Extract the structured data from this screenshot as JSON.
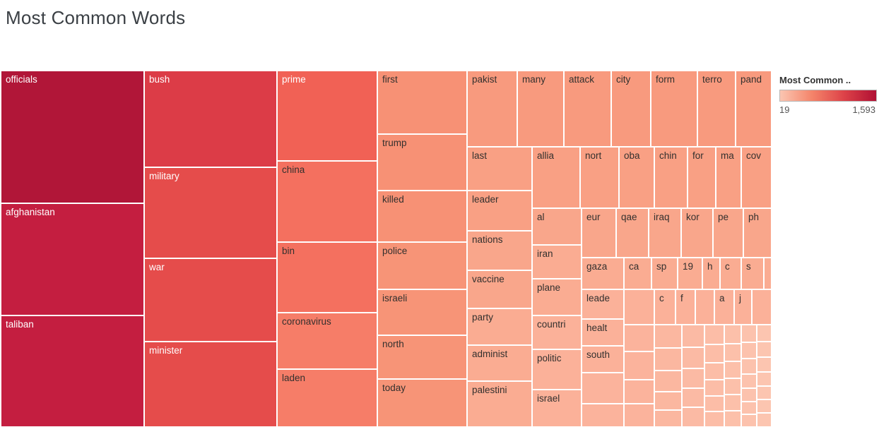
{
  "header": {
    "title": "Most Common Words"
  },
  "legend": {
    "title": "Most Common ..",
    "min_label": "19",
    "max_label": "1,593",
    "gradient": [
      "#fbc6b2",
      "#f4846a",
      "#dd4248",
      "#b01034"
    ]
  },
  "chart_data": {
    "type": "treemap",
    "title": "Most Common Words",
    "value_domain": [
      19,
      1593
    ],
    "legend_position": "right",
    "palette": {
      "t1": "#b11638",
      "t2": "#c41e40",
      "t3": "#dc3c47",
      "t4": "#e54c4b",
      "t5": "#f16155",
      "t6": "#f4705f",
      "t7": "#f67d68",
      "t8": "#f79175",
      "t9": "#f79477",
      "t10": "#f89a7e",
      "t11": "#f9a084",
      "t12": "#f9a68b",
      "t13": "#faac92",
      "t14": "#fbb199",
      "m1": "#fbb39c",
      "m2": "#fbb7a0",
      "m3": "#fbbaa4",
      "m4": "#fcbda7",
      "m5": "#fcc0aa",
      "m6": "#fcc2ad",
      "m7": "#fcc5b0"
    },
    "light_text_tiers": [
      "t1",
      "t2",
      "t3",
      "t4",
      "t5"
    ],
    "text_colors": {
      "light": "#ffffff",
      "dark": "#33302e"
    },
    "cells": [
      [
        "officials",
        0,
        0,
        203,
        188,
        "t1"
      ],
      [
        "afghanistan",
        0,
        188,
        203,
        159,
        "t2"
      ],
      [
        "taliban",
        0,
        347,
        203,
        158,
        "t2"
      ],
      [
        "bush",
        203,
        0,
        188,
        137,
        "t3"
      ],
      [
        "military",
        203,
        137,
        188,
        129,
        "t4"
      ],
      [
        "war",
        203,
        266,
        188,
        118,
        "t4"
      ],
      [
        "minister",
        203,
        384,
        188,
        121,
        "t4"
      ],
      [
        "prime",
        391,
        0,
        142,
        128,
        "t5"
      ],
      [
        "china",
        391,
        128,
        142,
        115,
        "t6"
      ],
      [
        "bin",
        391,
        243,
        142,
        100,
        "t6"
      ],
      [
        "coronavirus",
        391,
        343,
        142,
        80,
        "t7"
      ],
      [
        "laden",
        391,
        423,
        142,
        82,
        "t7"
      ],
      [
        "first",
        533,
        0,
        127,
        90,
        "t8"
      ],
      [
        "trump",
        533,
        90,
        127,
        80,
        "t8"
      ],
      [
        "killed",
        533,
        170,
        127,
        73,
        "t8"
      ],
      [
        "police",
        533,
        243,
        127,
        67,
        "t9"
      ],
      [
        "israeli",
        533,
        310,
        127,
        65,
        "t9"
      ],
      [
        "north",
        533,
        375,
        127,
        62,
        "t9"
      ],
      [
        "today",
        533,
        437,
        127,
        68,
        "t9"
      ],
      [
        "pakist",
        660,
        0,
        71,
        108,
        "t10"
      ],
      [
        "many",
        731,
        0,
        66,
        108,
        "t10"
      ],
      [
        "attack",
        797,
        0,
        67,
        108,
        "t10"
      ],
      [
        "city",
        864,
        0,
        56,
        108,
        "t10"
      ],
      [
        "form",
        920,
        0,
        66,
        108,
        "t10"
      ],
      [
        "terro",
        986,
        0,
        54,
        108,
        "t10"
      ],
      [
        "pand",
        1040,
        0,
        51,
        108,
        "t10"
      ],
      [
        "last",
        660,
        108,
        92,
        62,
        "t11"
      ],
      [
        "leader",
        660,
        170,
        92,
        57,
        "t11"
      ],
      [
        "nations",
        660,
        227,
        92,
        56,
        "t12"
      ],
      [
        "vaccine",
        660,
        283,
        92,
        54,
        "t12"
      ],
      [
        "party",
        660,
        337,
        92,
        52,
        "t13"
      ],
      [
        "administ",
        660,
        389,
        92,
        51,
        "t13"
      ],
      [
        "palestini",
        660,
        440,
        92,
        65,
        "t13"
      ],
      [
        "allia",
        752,
        108,
        68,
        87,
        "t11"
      ],
      [
        "nort",
        820,
        108,
        55,
        87,
        "t11"
      ],
      [
        "oba",
        875,
        108,
        50,
        87,
        "t11"
      ],
      [
        "chin",
        925,
        108,
        47,
        87,
        "t11"
      ],
      [
        "for",
        972,
        108,
        40,
        87,
        "t11"
      ],
      [
        "ma",
        1012,
        108,
        36,
        87,
        "t11"
      ],
      [
        "cov",
        1048,
        108,
        43,
        87,
        "t11"
      ],
      [
        "al",
        752,
        195,
        70,
        52,
        "t12"
      ],
      [
        "iran",
        752,
        247,
        70,
        48,
        "t13"
      ],
      [
        "plane",
        752,
        295,
        70,
        52,
        "t13"
      ],
      [
        "countri",
        752,
        347,
        70,
        48,
        "t14"
      ],
      [
        "politic",
        752,
        395,
        70,
        57,
        "t14"
      ],
      [
        "israel",
        752,
        452,
        70,
        53,
        "t14"
      ],
      [
        "eur",
        822,
        195,
        49,
        70,
        "t12"
      ],
      [
        "qae",
        871,
        195,
        46,
        70,
        "t12"
      ],
      [
        "iraq",
        917,
        195,
        46,
        70,
        "t12"
      ],
      [
        "kor",
        963,
        195,
        45,
        70,
        "t12"
      ],
      [
        "pe",
        1008,
        195,
        43,
        70,
        "t12"
      ],
      [
        "ph",
        1051,
        195,
        40,
        70,
        "t12"
      ],
      [
        "gaza",
        822,
        265,
        60,
        45,
        "t13"
      ],
      [
        "ca",
        882,
        265,
        39,
        45,
        "t13"
      ],
      [
        "sp",
        921,
        265,
        37,
        45,
        "t13"
      ],
      [
        "19",
        958,
        265,
        35,
        45,
        "t13"
      ],
      [
        "h",
        993,
        265,
        25,
        45,
        "t13"
      ],
      [
        "c",
        1018,
        265,
        30,
        45,
        "t13"
      ],
      [
        "s",
        1048,
        265,
        32,
        45,
        "t13"
      ],
      [
        "",
        1080,
        265,
        11,
        45,
        "t13"
      ],
      [
        "leade",
        822,
        310,
        60,
        42,
        "t14"
      ],
      [
        "healt",
        822,
        352,
        60,
        38,
        "t14"
      ],
      [
        "south",
        822,
        390,
        60,
        38,
        "t14"
      ],
      [
        "",
        822,
        428,
        60,
        44,
        "m1"
      ],
      [
        "",
        822,
        472,
        60,
        33,
        "m1"
      ],
      [
        "",
        882,
        310,
        43,
        50,
        "t14"
      ],
      [
        "c",
        925,
        310,
        30,
        50,
        "t14"
      ],
      [
        "f",
        955,
        310,
        28,
        50,
        "t14"
      ],
      [
        "",
        983,
        310,
        27,
        50,
        "t14"
      ],
      [
        "a",
        1010,
        310,
        28,
        50,
        "t14"
      ],
      [
        "j",
        1038,
        310,
        25,
        50,
        "t14"
      ],
      [
        "",
        1063,
        310,
        28,
        50,
        "t14"
      ],
      [
        "",
        882,
        360,
        43,
        38,
        "m1"
      ],
      [
        "",
        882,
        398,
        43,
        40,
        "m1"
      ],
      [
        "",
        882,
        438,
        43,
        34,
        "m1"
      ],
      [
        "",
        882,
        472,
        43,
        33,
        "m1"
      ],
      [
        "",
        925,
        360,
        39,
        33,
        "m2"
      ],
      [
        "",
        925,
        393,
        39,
        32,
        "m2"
      ],
      [
        "",
        925,
        425,
        39,
        30,
        "m2"
      ],
      [
        "",
        925,
        455,
        39,
        26,
        "m2"
      ],
      [
        "",
        925,
        481,
        39,
        24,
        "m2"
      ],
      [
        "",
        964,
        360,
        32,
        32,
        "m3"
      ],
      [
        "",
        964,
        392,
        32,
        30,
        "m3"
      ],
      [
        "",
        964,
        422,
        32,
        28,
        "m3"
      ],
      [
        "",
        964,
        450,
        32,
        27,
        "m3"
      ],
      [
        "",
        964,
        477,
        32,
        28,
        "m3"
      ],
      [
        "",
        996,
        360,
        28,
        28,
        "m4"
      ],
      [
        "",
        996,
        388,
        28,
        26,
        "m4"
      ],
      [
        "",
        996,
        414,
        28,
        24,
        "m4"
      ],
      [
        "",
        996,
        438,
        28,
        23,
        "m4"
      ],
      [
        "",
        996,
        461,
        28,
        22,
        "m4"
      ],
      [
        "",
        996,
        483,
        28,
        22,
        "m4"
      ],
      [
        "",
        1024,
        360,
        24,
        27,
        "m5"
      ],
      [
        "",
        1024,
        387,
        24,
        25,
        "m5"
      ],
      [
        "",
        1024,
        412,
        24,
        24,
        "m5"
      ],
      [
        "",
        1024,
        436,
        24,
        23,
        "m5"
      ],
      [
        "",
        1024,
        459,
        24,
        23,
        "m5"
      ],
      [
        "",
        1024,
        482,
        24,
        23,
        "m5"
      ],
      [
        "",
        1048,
        360,
        22,
        25,
        "m6"
      ],
      [
        "",
        1048,
        385,
        22,
        23,
        "m6"
      ],
      [
        "",
        1048,
        408,
        22,
        22,
        "m6"
      ],
      [
        "",
        1048,
        430,
        22,
        20,
        "m6"
      ],
      [
        "",
        1048,
        450,
        22,
        19,
        "m6"
      ],
      [
        "",
        1048,
        469,
        22,
        18,
        "m6"
      ],
      [
        "",
        1048,
        487,
        22,
        18,
        "m6"
      ],
      [
        "",
        1070,
        360,
        21,
        24,
        "m7"
      ],
      [
        "",
        1070,
        384,
        21,
        22,
        "m7"
      ],
      [
        "",
        1070,
        406,
        21,
        21,
        "m7"
      ],
      [
        "",
        1070,
        427,
        21,
        20,
        "m7"
      ],
      [
        "",
        1070,
        447,
        21,
        19,
        "m7"
      ],
      [
        "",
        1070,
        466,
        21,
        19,
        "m7"
      ],
      [
        "",
        1070,
        485,
        21,
        20,
        "m7"
      ]
    ]
  }
}
